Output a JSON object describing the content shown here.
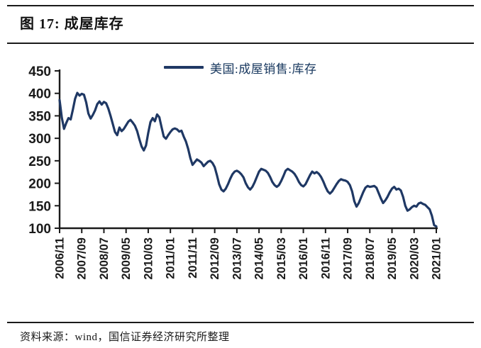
{
  "header": {
    "title": "图 17:  成屋库存"
  },
  "footer": {
    "source": "资料来源：wind，国信证券经济研究所整理"
  },
  "colors": {
    "line": "#1f3864",
    "axis": "#1a1a1a",
    "legend_text": "#17375e",
    "tick_label": "#1a1a1a"
  },
  "chart_data": {
    "type": "line",
    "title": "成屋库存",
    "xlabel": "",
    "ylabel": "",
    "grid": false,
    "legend_position": "top-center",
    "ylim": [
      100,
      450
    ],
    "yticks": [
      450,
      400,
      350,
      300,
      250,
      200,
      150,
      100
    ],
    "xtick_labels": [
      "2006/11",
      "2007/09",
      "2008/07",
      "2009/05",
      "2010/03",
      "2011/01",
      "2011/11",
      "2012/09",
      "2013/07",
      "2014/05",
      "2015/03",
      "2016/01",
      "2016/11",
      "2017/09",
      "2018/07",
      "2019/05",
      "2020/03",
      "2021/01"
    ],
    "xtick_month_index": [
      0,
      10,
      20,
      30,
      40,
      50,
      60,
      70,
      80,
      90,
      100,
      110,
      120,
      130,
      140,
      150,
      160,
      170
    ],
    "x_start": "2006/11",
    "x_end": "2021/01",
    "x_frequency": "monthly",
    "series": [
      {
        "name": "美国:成屋销售:库存",
        "color": "#1f3864",
        "values": [
          385,
          346,
          321,
          334,
          345,
          342,
          364,
          388,
          401,
          395,
          399,
          397,
          380,
          355,
          344,
          352,
          362,
          376,
          382,
          375,
          381,
          378,
          366,
          350,
          332,
          314,
          307,
          324,
          316,
          321,
          329,
          337,
          341,
          335,
          328,
          316,
          298,
          282,
          273,
          284,
          312,
          336,
          345,
          338,
          353,
          347,
          325,
          304,
          299,
          307,
          314,
          320,
          322,
          320,
          315,
          317,
          304,
          293,
          277,
          256,
          241,
          247,
          253,
          250,
          246,
          238,
          243,
          248,
          250,
          245,
          236,
          218,
          198,
          186,
          182,
          188,
          198,
          210,
          220,
          226,
          228,
          225,
          220,
          213,
          200,
          191,
          186,
          192,
          202,
          214,
          226,
          232,
          230,
          228,
          223,
          214,
          203,
          196,
          192,
          196,
          205,
          216,
          228,
          232,
          229,
          226,
          221,
          213,
          203,
          196,
          193,
          198,
          208,
          218,
          226,
          222,
          225,
          221,
          214,
          204,
          192,
          182,
          177,
          182,
          190,
          198,
          205,
          209,
          207,
          206,
          203,
          196,
          182,
          160,
          148,
          156,
          168,
          180,
          190,
          194,
          192,
          193,
          194,
          190,
          178,
          166,
          156,
          162,
          170,
          180,
          188,
          192,
          186,
          188,
          184,
          170,
          150,
          139,
          142,
          147,
          150,
          148,
          155,
          157,
          154,
          152,
          147,
          142,
          128,
          107,
          104
        ]
      }
    ]
  }
}
